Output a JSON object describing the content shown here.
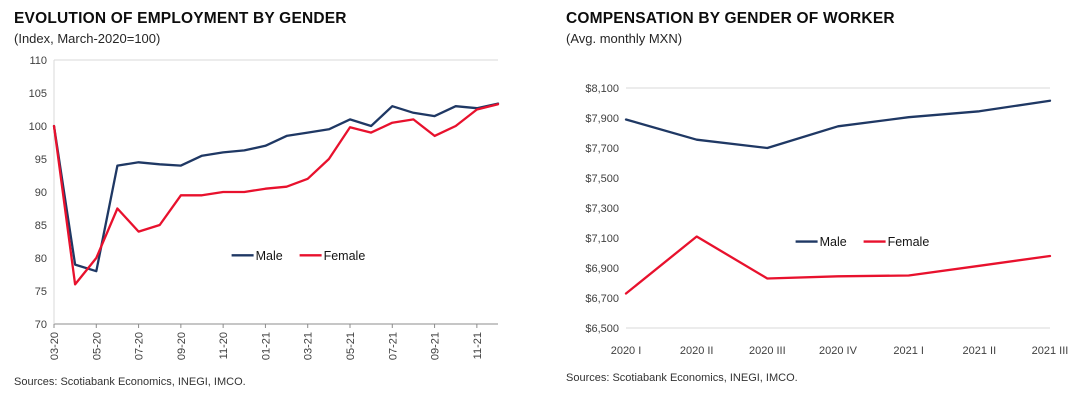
{
  "left_chart": {
    "title": "EVOLUTION OF EMPLOYMENT BY GENDER",
    "subtitle": "(Index, March-2020=100)",
    "sources": "Sources: Scotiabank Economics, INEGI, IMCO.",
    "chart_data": {
      "type": "line",
      "x": [
        "03-20",
        "04-20",
        "05-20",
        "06-20",
        "07-20",
        "08-20",
        "09-20",
        "10-20",
        "11-20",
        "12-20",
        "01-21",
        "02-21",
        "03-21",
        "04-21",
        "05-21",
        "06-21",
        "07-21",
        "08-21",
        "09-21",
        "10-21",
        "11-21",
        "12-21"
      ],
      "x_tick_labels": [
        "03-20",
        "05-20",
        "07-20",
        "09-20",
        "11-20",
        "01-21",
        "03-21",
        "05-21",
        "07-21",
        "09-21",
        "11-21"
      ],
      "series": [
        {
          "name": "Male",
          "color": "#1f3864",
          "values": [
            100,
            79,
            78,
            94,
            94.5,
            94.2,
            94,
            95.5,
            96,
            96.3,
            97,
            98.5,
            99,
            99.5,
            101,
            100,
            103,
            102,
            101.5,
            103,
            102.7,
            103.4
          ]
        },
        {
          "name": "Female",
          "color": "#e8112d",
          "values": [
            100,
            76,
            80,
            87.5,
            84,
            85,
            89.5,
            89.5,
            90,
            90,
            90.5,
            90.8,
            92,
            95,
            99.8,
            99,
            100.5,
            101,
            98.5,
            100,
            102.5,
            103.3
          ]
        }
      ],
      "ylim": [
        70,
        110
      ],
      "ystep": 5,
      "y_prefix": "",
      "x_labels_rotated": true,
      "grid": "off",
      "legend_position": "inside-bottom-center",
      "legend_pos": {
        "x": 0.4,
        "y": 0.74
      },
      "y_axis_line": true,
      "axis_strong": true
    }
  },
  "right_chart": {
    "title": "COMPENSATION BY GENDER OF WORKER",
    "subtitle": "(Avg. monthly MXN)",
    "sources": "Sources: Scotiabank Economics, INEGI, IMCO.",
    "chart_data": {
      "type": "line",
      "x": [
        "2020 I",
        "2020 II",
        "2020 III",
        "2020 IV",
        "2021 I",
        "2021 II",
        "2021 III"
      ],
      "series": [
        {
          "name": "Male",
          "color": "#1f3864",
          "values": [
            7890,
            7755,
            7700,
            7845,
            7905,
            7945,
            8015
          ]
        },
        {
          "name": "Female",
          "color": "#e8112d",
          "values": [
            6730,
            7110,
            6830,
            6845,
            6850,
            6915,
            6980
          ]
        }
      ],
      "ylim": [
        6500,
        8100
      ],
      "ystep": 200,
      "y_prefix": "$",
      "x_labels_rotated": false,
      "grid": "off",
      "legend_position": "inside-middle-center",
      "legend_pos": {
        "x": 0.4,
        "y": 0.64
      },
      "y_axis_line": false,
      "axis_strong": false
    }
  }
}
